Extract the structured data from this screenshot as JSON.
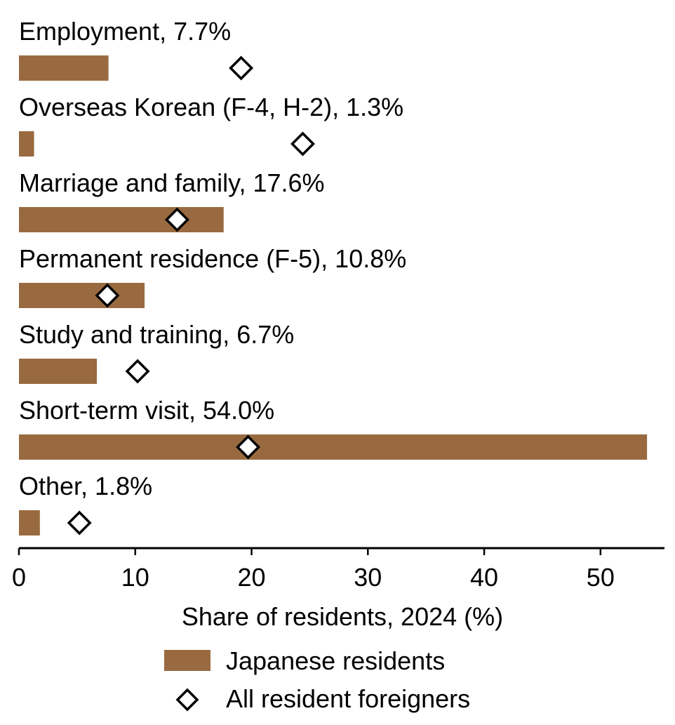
{
  "chart_data": {
    "type": "bar",
    "orientation": "horizontal",
    "categories": [
      "Employment, 7.7%",
      "Overseas Korean (F-4, H-2), 1.3%",
      "Marriage and family, 17.6%",
      "Permanent residence (F-5), 10.8%",
      "Study and training, 6.7%",
      "Short-term visit, 54.0%",
      "Other, 1.8%"
    ],
    "series": [
      {
        "name": "Japanese residents",
        "marker": "bar",
        "color": "#996a40",
        "values": [
          7.7,
          1.3,
          17.6,
          10.8,
          6.7,
          54.0,
          1.8
        ]
      },
      {
        "name": "All resident foreigners",
        "marker": "diamond",
        "color": "#000000",
        "values": [
          19.1,
          24.4,
          13.6,
          7.6,
          10.2,
          19.7,
          5.2
        ]
      }
    ],
    "xlabel": "Share of residents, 2024 (%)",
    "xlim": [
      0,
      55.5
    ],
    "xticks": [
      0,
      10,
      20,
      30,
      40,
      50
    ],
    "grid": false,
    "legend_position": "bottom"
  }
}
